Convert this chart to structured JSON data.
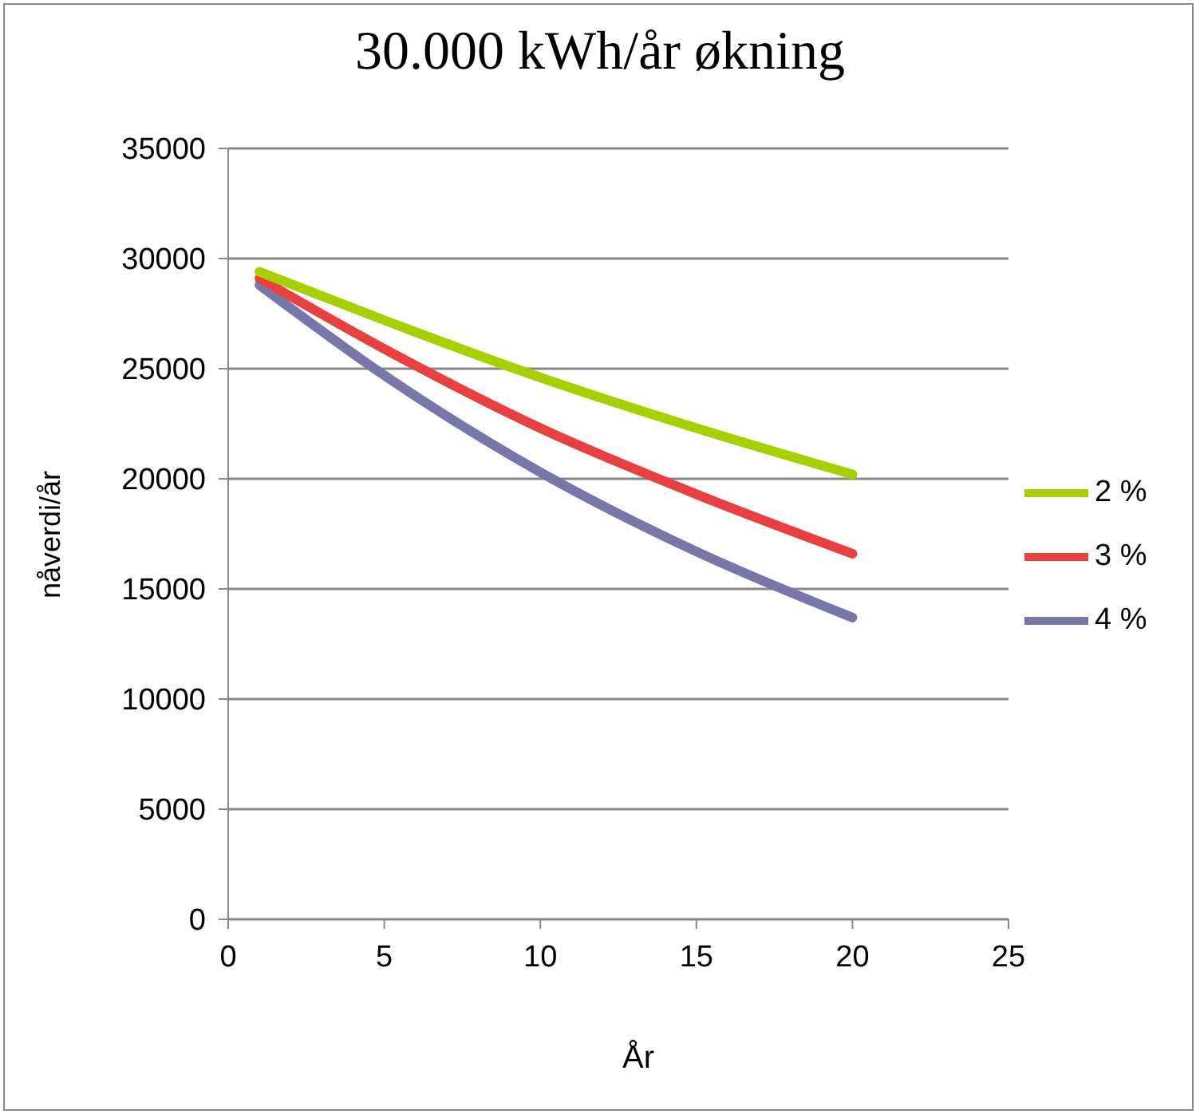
{
  "chart_data": {
    "type": "line",
    "title": "30.000 kWh/år økning",
    "xlabel": "År",
    "ylabel": "nåverdi/år",
    "x": [
      1,
      5,
      10,
      15,
      20
    ],
    "series": [
      {
        "name": "4 %",
        "color": "#7777aa",
        "values": [
          28800,
          24700,
          20300,
          16700,
          13700
        ]
      },
      {
        "name": "3 %",
        "color": "#e84040",
        "values": [
          29100,
          25900,
          22300,
          19300,
          16600
        ]
      },
      {
        "name": "2 %",
        "color": "#a6d000",
        "values": [
          29400,
          27200,
          24600,
          22300,
          20200
        ]
      }
    ],
    "xlim": [
      0,
      25
    ],
    "xticks": [
      0,
      5,
      10,
      15,
      20,
      25
    ],
    "ylim": [
      0,
      35000
    ],
    "yticks": [
      0,
      5000,
      10000,
      15000,
      20000,
      25000,
      30000,
      35000
    ],
    "grid": "y",
    "legend": "right",
    "marker": "none",
    "line_style": "solid"
  }
}
